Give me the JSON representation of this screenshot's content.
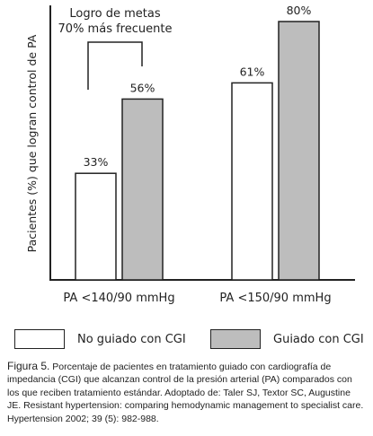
{
  "chart_data": {
    "type": "bar",
    "ylabel": "Pacientes (%) que logran control de PA",
    "categories": [
      "PA <140/90 mmHg",
      "PA <150/90 mmHg"
    ],
    "series": [
      {
        "name": "No guiado con CGI",
        "values": [
          33,
          61
        ],
        "labels": [
          "33%",
          "61%"
        ],
        "color": "#ffffff"
      },
      {
        "name": "Guiado con CGI",
        "values": [
          56,
          80
        ],
        "labels": [
          "56%",
          "80%"
        ],
        "color": "#bdbdbd"
      }
    ],
    "ylim": [
      0,
      85
    ],
    "grid": false,
    "legend": "bottom",
    "annotation": {
      "line1": "Logro de metas",
      "line2": "70% más frecuente"
    }
  },
  "caption": {
    "figure_label": "Figura 5.",
    "text": "Porcentaje de pacientes en tratamiento guiado con cardiografía de impedancia (CGI) que alcanzan control de la presión arterial (PA) comparados con los que reciben tratamiento estándar. Adoptado de: Taler SJ, Textor SC, Augustine JE. Resistant hypertension: comparing hemodynamic management to specialist care. Hypertension 2002; 39 (5): 982-988."
  }
}
